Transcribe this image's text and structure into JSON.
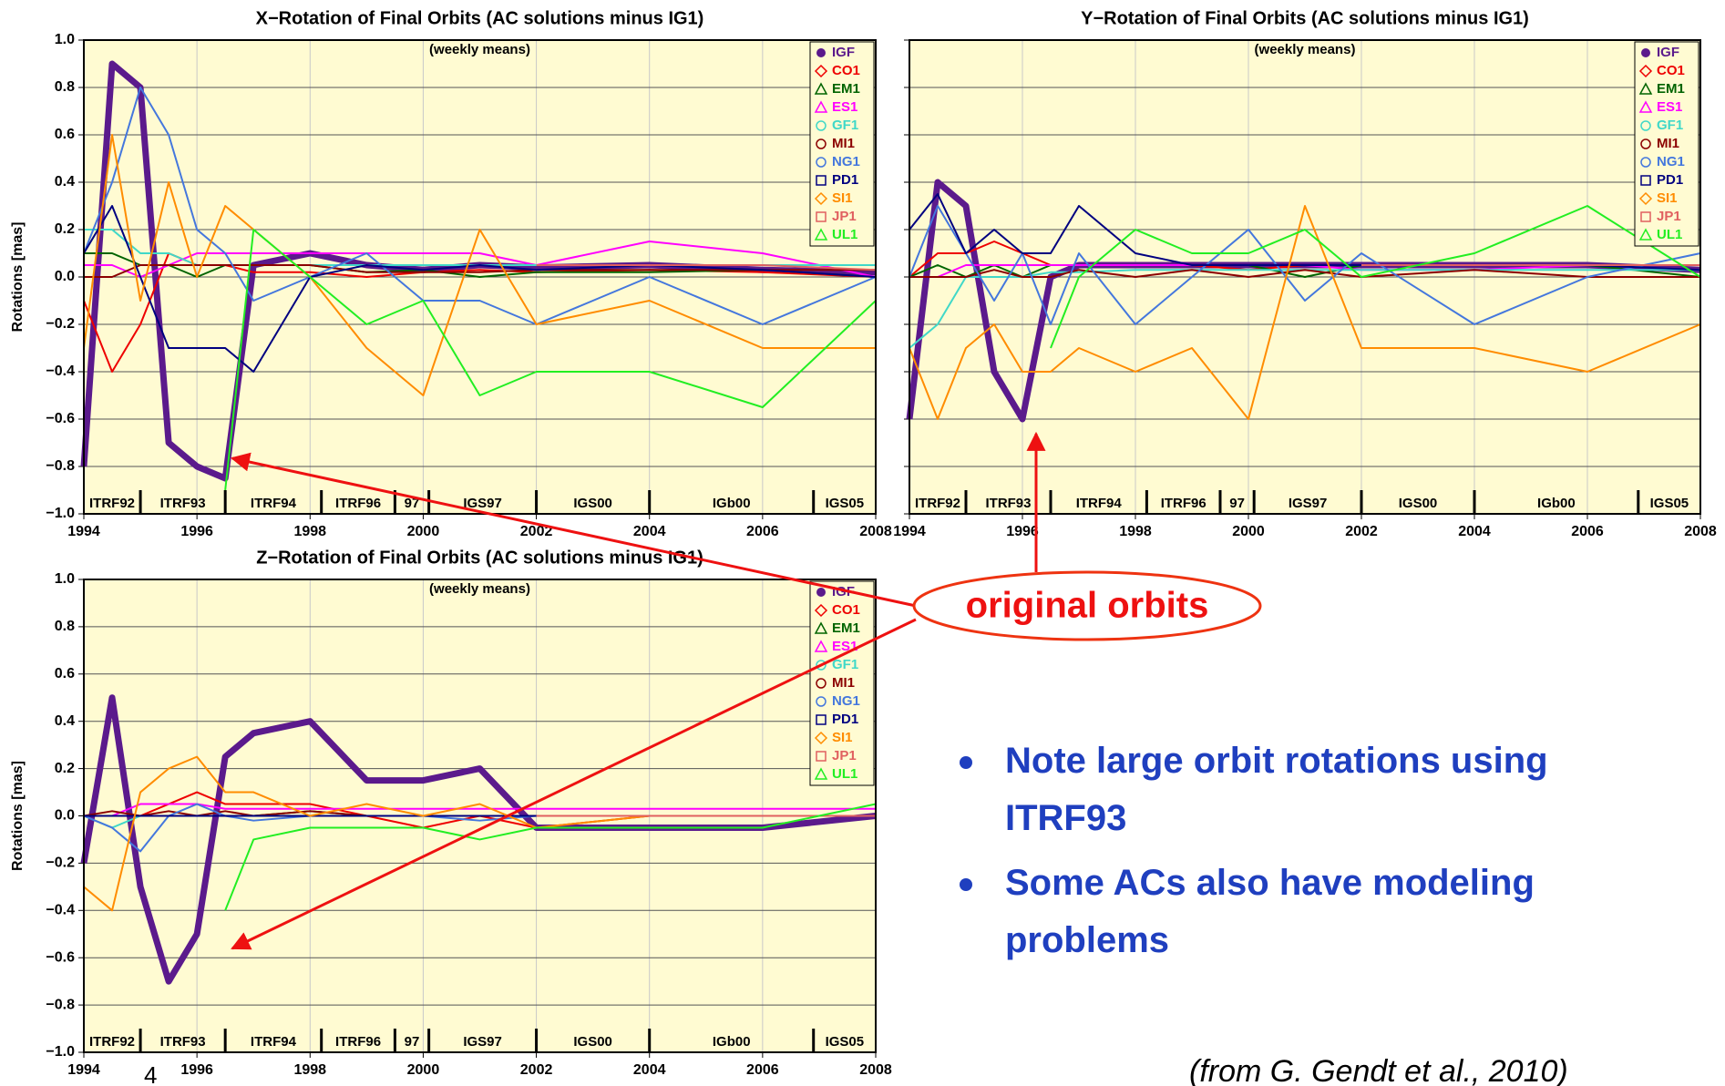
{
  "chart_data": [
    {
      "type": "line",
      "title": "X−Rotation of Final Orbits (AC solutions minus IG1)",
      "subtitle": "(weekly means)",
      "y_label": "Rotations [mas]",
      "x": [
        1994,
        1994.5,
        1995,
        1995.5,
        1996,
        1996.5,
        1997,
        1998,
        1999,
        2000,
        2001,
        2002,
        2004,
        2006,
        2008
      ],
      "xlim": [
        1994,
        2008
      ],
      "xticks": [
        1994,
        1996,
        1998,
        2000,
        2002,
        2004,
        2006,
        2008
      ],
      "ylim": [
        -1,
        1
      ],
      "yticks": [
        {
          "value": -1,
          "label": "−1.0"
        },
        {
          "value": -0.8,
          "label": "−0.8"
        },
        {
          "value": -0.6,
          "label": "−0.6"
        },
        {
          "value": -0.4,
          "label": "−0.4"
        },
        {
          "value": -0.2,
          "label": "−0.2"
        },
        {
          "value": 0,
          "label": "0.0"
        },
        {
          "value": 0.2,
          "label": "0.2"
        },
        {
          "value": 0.4,
          "label": "0.4"
        },
        {
          "value": 0.6,
          "label": "0.6"
        },
        {
          "value": 0.8,
          "label": "0.8"
        },
        {
          "value": 1,
          "label": "1.0"
        }
      ],
      "grid": true,
      "legend": "upper right",
      "frames": {
        "labels": [
          "ITRF92",
          "ITRF93",
          "ITRF94",
          "ITRF96",
          "97",
          "IGS97",
          "IGS00",
          "IGb00",
          "IGS05"
        ],
        "boundaries": [
          1995,
          1996.5,
          1998.2,
          1999.5,
          2000.1,
          2002,
          2004,
          2006.9
        ]
      },
      "series": [
        {
          "name": "IGF",
          "color": "#5b1a8c",
          "marker": "filled-circle",
          "values": [
            -0.8,
            0.9,
            0.8,
            -0.7,
            -0.8,
            -0.85,
            0.05,
            0.1,
            0.05,
            0.03,
            0.05,
            0.04,
            0.05,
            0.03,
            0.02
          ]
        },
        {
          "name": "CO1",
          "color": "#ee0000",
          "marker": "diamond",
          "values": [
            -0.1,
            -0.4,
            -0.2,
            0.1,
            0.05,
            0.05,
            0.02,
            0.02,
            0,
            0.02,
            0.03,
            0.02,
            0.03,
            0.02,
            0
          ]
        },
        {
          "name": "EM1",
          "color": "#006400",
          "marker": "triangle",
          "values": [
            0.1,
            0.1,
            0.05,
            0.05,
            0,
            0.05,
            0.05,
            0.05,
            0.02,
            0.03,
            0,
            0.02,
            0.02,
            0.03,
            0
          ]
        },
        {
          "name": "ES1",
          "color": "#ff00ff",
          "marker": "triangle",
          "values": [
            0.05,
            0.05,
            0,
            0.05,
            0.1,
            0.1,
            0.1,
            0.1,
            0.1,
            0.1,
            0.1,
            0.05,
            0.15,
            0.1,
            0
          ]
        },
        {
          "name": "GF1",
          "color": "#40d8c8",
          "marker": "circle",
          "values": [
            0.2,
            0.2,
            0.1,
            0.1,
            0.05,
            0.05,
            0.05,
            0.05,
            0.05,
            0.05,
            0.05,
            0.05,
            0.05,
            0.05,
            0.05
          ]
        },
        {
          "name": "MI1",
          "color": "#8b0000",
          "marker": "circle",
          "values": [
            0,
            0,
            0.05,
            0.05,
            0.05,
            0.05,
            0.05,
            0.05,
            0.02,
            0.02,
            0.02,
            0.03,
            0.03,
            0.03,
            0.03
          ]
        },
        {
          "name": "NG1",
          "color": "#4477dd",
          "marker": "circle",
          "values": [
            0.1,
            0.4,
            0.8,
            0.6,
            0.2,
            0.1,
            -0.1,
            0,
            0.1,
            -0.1,
            -0.1,
            -0.2,
            0,
            -0.2,
            0
          ]
        },
        {
          "name": "PD1",
          "color": "#000080",
          "marker": "square",
          "values": [
            0.1,
            0.3,
            0,
            -0.3,
            -0.3,
            -0.3,
            -0.4,
            0,
            0.05,
            0.03,
            0.05,
            0.03,
            0.05,
            0.03,
            0
          ]
        },
        {
          "name": "SI1",
          "color": "#ff8c00",
          "marker": "diamond",
          "values": [
            -0.3,
            0.6,
            -0.1,
            0.4,
            0,
            0.3,
            0.2,
            0,
            -0.3,
            -0.5,
            0.2,
            -0.2,
            -0.1,
            -0.3,
            -0.3
          ]
        },
        {
          "name": "JP1",
          "color": "#e06060",
          "marker": "square",
          "values": [
            null,
            null,
            null,
            null,
            null,
            null,
            null,
            null,
            null,
            null,
            null,
            0.05,
            0.05,
            0.05,
            0.03
          ]
        },
        {
          "name": "UL1",
          "color": "#22ee22",
          "marker": "triangle",
          "values": [
            null,
            null,
            null,
            null,
            null,
            -0.9,
            0.2,
            0,
            -0.2,
            -0.1,
            -0.5,
            -0.4,
            -0.4,
            -0.55,
            -0.1
          ]
        }
      ]
    },
    {
      "type": "line",
      "title": "Y−Rotation of Final Orbits (AC solutions minus IG1)",
      "subtitle": "(weekly means)",
      "x": [
        1994,
        1994.5,
        1995,
        1995.5,
        1996,
        1996.5,
        1997,
        1998,
        1999,
        2000,
        2001,
        2002,
        2004,
        2006,
        2008
      ],
      "xlim": [
        1994,
        2008
      ],
      "xticks": [
        1994,
        1996,
        1998,
        2000,
        2002,
        2004,
        2006,
        2008
      ],
      "ylim": [
        -1,
        1
      ],
      "yticks": [
        -1,
        -0.8,
        -0.6,
        -0.4,
        -0.2,
        0,
        0.2,
        0.4,
        0.6,
        0.8,
        1
      ],
      "grid": true,
      "legend": "upper right",
      "frames": {
        "labels": [
          "ITRF92",
          "ITRF93",
          "ITRF94",
          "ITRF96",
          "97",
          "IGS97",
          "IGS00",
          "IGb00",
          "IGS05"
        ],
        "boundaries": [
          1995,
          1996.5,
          1998.2,
          1999.5,
          2000.1,
          2002,
          2004,
          2006.9
        ]
      },
      "series": [
        {
          "name": "IGF",
          "color": "#5b1a8c",
          "marker": "filled-circle",
          "values": [
            -0.6,
            0.4,
            0.3,
            -0.4,
            -0.6,
            0,
            0.05,
            0.05,
            0.05,
            0.05,
            0.05,
            0.05,
            0.05,
            0.05,
            0.03
          ]
        },
        {
          "name": "CO1",
          "color": "#ee0000",
          "marker": "diamond",
          "values": [
            0,
            0.1,
            0.1,
            0.15,
            0.1,
            0.05,
            0.05,
            0.05,
            0.05,
            0.03,
            0.05,
            0.05,
            0.05,
            0.05,
            0.05
          ]
        },
        {
          "name": "EM1",
          "color": "#006400",
          "marker": "triangle",
          "values": [
            0,
            0.05,
            0,
            0.05,
            0,
            0.05,
            0.05,
            0.05,
            0.05,
            0.05,
            0,
            0.05,
            0.05,
            0.05,
            0
          ]
        },
        {
          "name": "ES1",
          "color": "#ff00ff",
          "marker": "triangle",
          "values": [
            0,
            0,
            0.05,
            0.05,
            0.05,
            0.05,
            0.05,
            0.05,
            0.05,
            0.05,
            0.05,
            0.03,
            0.03,
            0.05,
            0.05
          ]
        },
        {
          "name": "GF1",
          "color": "#40d8c8",
          "marker": "circle",
          "values": [
            -0.3,
            -0.2,
            0,
            0,
            0,
            0.02,
            0.02,
            0.03,
            0.03,
            0.03,
            0.03,
            0.03,
            0.03,
            0.03,
            0.03
          ]
        },
        {
          "name": "MI1",
          "color": "#8b0000",
          "marker": "circle",
          "values": [
            0,
            0,
            0,
            0.03,
            0,
            0,
            0.03,
            0,
            0.03,
            0,
            0.03,
            0,
            0.03,
            0,
            0
          ]
        },
        {
          "name": "NG1",
          "color": "#4477dd",
          "marker": "circle",
          "values": [
            0,
            0.3,
            0.1,
            -0.1,
            0.1,
            -0.2,
            0.1,
            -0.2,
            0,
            0.2,
            -0.1,
            0.1,
            -0.2,
            0,
            0.1
          ]
        },
        {
          "name": "PD1",
          "color": "#000080",
          "marker": "square",
          "values": [
            0.2,
            0.35,
            0.1,
            0.2,
            0.1,
            0.1,
            0.3,
            0.1,
            0.05,
            0.05,
            0.05,
            0.05,
            0.05,
            0.05,
            0.03
          ]
        },
        {
          "name": "SI1",
          "color": "#ff8c00",
          "marker": "diamond",
          "values": [
            -0.3,
            -0.6,
            -0.3,
            -0.2,
            -0.4,
            -0.4,
            -0.3,
            -0.4,
            -0.3,
            -0.6,
            0.3,
            -0.3,
            -0.3,
            -0.4,
            -0.2
          ]
        },
        {
          "name": "JP1",
          "color": "#e06060",
          "marker": "square",
          "values": [
            null,
            null,
            null,
            null,
            null,
            null,
            null,
            null,
            null,
            null,
            null,
            0.05,
            0.05,
            0.05,
            0.05
          ]
        },
        {
          "name": "UL1",
          "color": "#22ee22",
          "marker": "triangle",
          "values": [
            null,
            null,
            null,
            null,
            null,
            -0.3,
            0,
            0.2,
            0.1,
            0.1,
            0.2,
            0,
            0.1,
            0.3,
            0
          ]
        }
      ]
    },
    {
      "type": "line",
      "title": "Z−Rotation of Final Orbits (AC solutions minus IG1)",
      "subtitle": "(weekly means)",
      "y_label": "Rotations [mas]",
      "x": [
        1994,
        1994.5,
        1995,
        1995.5,
        1996,
        1996.5,
        1997,
        1998,
        1999,
        2000,
        2001,
        2002,
        2004,
        2006,
        2008
      ],
      "xlim": [
        1994,
        2008
      ],
      "xticks": [
        1994,
        1996,
        1998,
        2000,
        2002,
        2004,
        2006,
        2008
      ],
      "ylim": [
        -1,
        1
      ],
      "yticks": [
        {
          "value": -1,
          "label": "−1.0"
        },
        {
          "value": -0.8,
          "label": "−0.8"
        },
        {
          "value": -0.6,
          "label": "−0.6"
        },
        {
          "value": -0.4,
          "label": "−0.4"
        },
        {
          "value": -0.2,
          "label": "−0.2"
        },
        {
          "value": 0,
          "label": "0.0"
        },
        {
          "value": 0.2,
          "label": "0.2"
        },
        {
          "value": 0.4,
          "label": "0.4"
        },
        {
          "value": 0.6,
          "label": "0.6"
        },
        {
          "value": 0.8,
          "label": "0.8"
        },
        {
          "value": 1,
          "label": "1.0"
        }
      ],
      "grid": true,
      "legend": "upper right",
      "frames": {
        "labels": [
          "ITRF92",
          "ITRF93",
          "ITRF94",
          "ITRF96",
          "97",
          "IGS97",
          "IGS00",
          "IGb00",
          "IGS05"
        ],
        "boundaries": [
          1995,
          1996.5,
          1998.2,
          1999.5,
          2000.1,
          2002,
          2004,
          2006.9
        ]
      },
      "series": [
        {
          "name": "IGF",
          "color": "#5b1a8c",
          "marker": "filled-circle",
          "values": [
            -0.2,
            0.5,
            -0.3,
            -0.7,
            -0.5,
            0.25,
            0.35,
            0.4,
            0.15,
            0.15,
            0.2,
            -0.05,
            -0.05,
            -0.05,
            0
          ]
        },
        {
          "name": "CO1",
          "color": "#ee0000",
          "marker": "diamond",
          "values": [
            0,
            0,
            0,
            0.05,
            0.1,
            0.05,
            0.05,
            0.05,
            0,
            -0.05,
            0,
            -0.05,
            0,
            0,
            0
          ]
        },
        {
          "name": "EM1",
          "color": "#006400",
          "marker": "triangle",
          "values": [
            0,
            0,
            0,
            0,
            0,
            0,
            0,
            0.02,
            0,
            0,
            0,
            0,
            0,
            0,
            0
          ]
        },
        {
          "name": "ES1",
          "color": "#ff00ff",
          "marker": "triangle",
          "values": [
            0,
            0,
            0.05,
            0.05,
            0.05,
            0.03,
            0.03,
            0.03,
            0.03,
            0.03,
            0.03,
            0.03,
            0.03,
            0.03,
            0.03
          ]
        },
        {
          "name": "GF1",
          "color": "#40d8c8",
          "marker": "circle",
          "values": [
            0,
            -0.05,
            0,
            0,
            0,
            0,
            0,
            0,
            0,
            0,
            0,
            0,
            0,
            0,
            0
          ]
        },
        {
          "name": "MI1",
          "color": "#8b0000",
          "marker": "circle",
          "values": [
            0,
            0.02,
            0,
            0.02,
            0,
            0.02,
            0,
            0.02,
            0,
            0,
            0,
            0,
            0,
            0,
            0
          ]
        },
        {
          "name": "NG1",
          "color": "#4477dd",
          "marker": "circle",
          "values": [
            0,
            -0.05,
            -0.15,
            0,
            0.05,
            0,
            -0.02,
            0,
            0,
            0,
            -0.02,
            0,
            0,
            0,
            0
          ]
        },
        {
          "name": "PD1",
          "color": "#000080",
          "marker": "square",
          "values": [
            0,
            0,
            0,
            0,
            0,
            0,
            0,
            0,
            0,
            0,
            0,
            0,
            0,
            0,
            0
          ]
        },
        {
          "name": "SI1",
          "color": "#ff8c00",
          "marker": "diamond",
          "values": [
            -0.3,
            -0.4,
            0.1,
            0.2,
            0.25,
            0.1,
            0.1,
            0,
            0.05,
            0,
            0.05,
            -0.05,
            0,
            0,
            0
          ]
        },
        {
          "name": "JP1",
          "color": "#e06060",
          "marker": "square",
          "values": [
            null,
            null,
            null,
            null,
            null,
            null,
            null,
            null,
            null,
            null,
            null,
            0,
            0,
            0,
            0
          ]
        },
        {
          "name": "UL1",
          "color": "#22ee22",
          "marker": "triangle",
          "values": [
            null,
            null,
            null,
            null,
            null,
            -0.4,
            -0.1,
            -0.05,
            -0.05,
            -0.05,
            -0.1,
            -0.05,
            -0.05,
            -0.05,
            0.05
          ]
        }
      ]
    }
  ],
  "slide": {
    "callout": "original orbits",
    "bullets": [
      "Note large orbit rotations using ITRF93",
      "Some ACs also have modeling problems"
    ],
    "source": "(from G. Gendt et al., 2010)",
    "page_number": "4"
  }
}
